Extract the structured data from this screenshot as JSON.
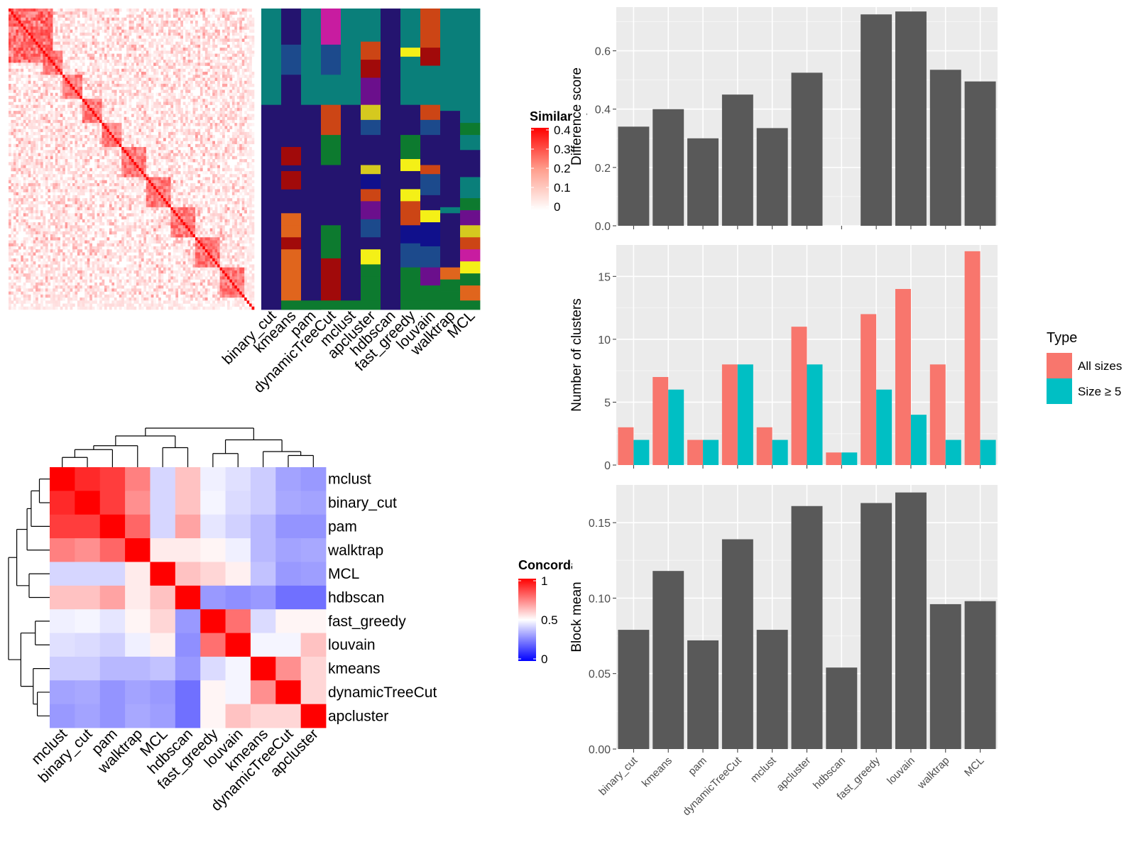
{
  "methods": [
    "binary_cut",
    "kmeans",
    "pam",
    "dynamicTreeCut",
    "mclust",
    "apcluster",
    "hdbscan",
    "fast_greedy",
    "louvain",
    "walktrap",
    "MCL"
  ],
  "similarity_legend": {
    "title": "Similarity",
    "ticks": [
      "0.4",
      "0.3",
      "0.2",
      "0.1",
      "0"
    ]
  },
  "concordance_legend": {
    "title": "Concordance",
    "ticks": [
      "1",
      "0.5",
      "0"
    ]
  },
  "concordance_order": [
    "mclust",
    "binary_cut",
    "pam",
    "walktrap",
    "MCL",
    "hdbscan",
    "fast_greedy",
    "louvain",
    "kmeans",
    "dynamicTreeCut",
    "apcluster"
  ],
  "colors": {
    "bar": "#595959",
    "panel_bg": "#ebebeb",
    "all_sizes": "#f8766d",
    "size_ge_5": "#00bfc4",
    "sim_high": "#ff0000",
    "conc_high": "#ff0000",
    "conc_mid": "#ffffff",
    "conc_low": "#0000ff"
  },
  "chart_data": [
    {
      "type": "heatmap",
      "panel": "similarity matrix with cluster assignments",
      "legend_title": "Similarity",
      "value_range": [
        0,
        0.4
      ],
      "ticks": [
        0,
        0.1,
        0.2,
        0.3,
        0.4
      ],
      "assignment_columns": [
        "binary_cut",
        "kmeans",
        "pam",
        "dynamicTreeCut",
        "mclust",
        "apcluster",
        "hdbscan",
        "fast_greedy",
        "louvain",
        "walktrap",
        "MCL"
      ]
    },
    {
      "type": "heatmap",
      "panel": "concordance between methods",
      "legend_title": "Concordance",
      "value_range": [
        0,
        1
      ],
      "ticks": [
        0,
        0.5,
        1
      ],
      "rows": [
        "mclust",
        "binary_cut",
        "pam",
        "walktrap",
        "MCL",
        "hdbscan",
        "fast_greedy",
        "louvain",
        "kmeans",
        "dynamicTreeCut",
        "apcluster"
      ],
      "columns": [
        "mclust",
        "binary_cut",
        "pam",
        "walktrap",
        "MCL",
        "hdbscan",
        "fast_greedy",
        "louvain",
        "kmeans",
        "dynamicTreeCut",
        "apcluster"
      ],
      "values": [
        [
          1.0,
          0.92,
          0.88,
          0.75,
          0.42,
          0.62,
          0.47,
          0.44,
          0.4,
          0.32,
          0.3
        ],
        [
          0.92,
          1.0,
          0.88,
          0.72,
          0.42,
          0.62,
          0.48,
          0.43,
          0.4,
          0.33,
          0.32
        ],
        [
          0.88,
          0.88,
          1.0,
          0.8,
          0.42,
          0.68,
          0.45,
          0.41,
          0.36,
          0.29,
          0.29
        ],
        [
          0.75,
          0.72,
          0.8,
          1.0,
          0.54,
          0.54,
          0.52,
          0.47,
          0.36,
          0.32,
          0.33
        ],
        [
          0.42,
          0.42,
          0.42,
          0.54,
          1.0,
          0.62,
          0.58,
          0.53,
          0.38,
          0.3,
          0.31
        ],
        [
          0.62,
          0.62,
          0.68,
          0.54,
          0.62,
          1.0,
          0.3,
          0.28,
          0.3,
          0.22,
          0.22
        ],
        [
          0.47,
          0.48,
          0.45,
          0.52,
          0.58,
          0.3,
          1.0,
          0.78,
          0.43,
          0.52,
          0.52
        ],
        [
          0.44,
          0.43,
          0.41,
          0.47,
          0.53,
          0.28,
          0.78,
          1.0,
          0.48,
          0.48,
          0.62
        ],
        [
          0.4,
          0.4,
          0.36,
          0.36,
          0.38,
          0.3,
          0.43,
          0.48,
          1.0,
          0.72,
          0.58
        ],
        [
          0.32,
          0.33,
          0.29,
          0.32,
          0.3,
          0.22,
          0.52,
          0.48,
          0.72,
          1.0,
          0.58
        ],
        [
          0.3,
          0.32,
          0.29,
          0.33,
          0.31,
          0.22,
          0.52,
          0.62,
          0.58,
          0.58,
          1.0
        ]
      ]
    },
    {
      "type": "bar",
      "categories": [
        "binary_cut",
        "kmeans",
        "pam",
        "dynamicTreeCut",
        "mclust",
        "apcluster",
        "hdbscan",
        "fast_greedy",
        "louvain",
        "walktrap",
        "MCL"
      ],
      "values": [
        0.34,
        0.4,
        0.3,
        0.45,
        0.335,
        0.525,
        null,
        0.725,
        0.735,
        0.535,
        0.495
      ],
      "ylabel": "Difference score",
      "ylim": [
        0,
        0.75
      ],
      "yticks": [
        "0.0",
        "0.2",
        "0.4",
        "0.6"
      ],
      "grid": true
    },
    {
      "type": "bar",
      "categories": [
        "binary_cut",
        "kmeans",
        "pam",
        "dynamicTreeCut",
        "mclust",
        "apcluster",
        "hdbscan",
        "fast_greedy",
        "louvain",
        "walktrap",
        "MCL"
      ],
      "series": [
        {
          "name": "All sizes",
          "values": [
            3,
            7,
            2,
            8,
            3,
            11,
            1,
            12,
            14,
            8,
            17
          ]
        },
        {
          "name": "Size ≥ 5",
          "values": [
            2,
            6,
            2,
            8,
            2,
            8,
            1,
            6,
            4,
            2,
            2
          ]
        }
      ],
      "ylabel": "Number of clusters",
      "ylim": [
        0,
        17.5
      ],
      "yticks": [
        "0",
        "5",
        "10",
        "15"
      ],
      "legend_title": "Type",
      "legend_position": "right",
      "grid": true
    },
    {
      "type": "bar",
      "categories": [
        "binary_cut",
        "kmeans",
        "pam",
        "dynamicTreeCut",
        "mclust",
        "apcluster",
        "hdbscan",
        "fast_greedy",
        "louvain",
        "walktrap",
        "MCL"
      ],
      "values": [
        0.079,
        0.118,
        0.072,
        0.139,
        0.079,
        0.161,
        0.054,
        0.163,
        0.17,
        0.096,
        0.098
      ],
      "ylabel": "Block mean",
      "ylim": [
        0,
        0.175
      ],
      "yticks": [
        "0.00",
        "0.05",
        "0.10",
        "0.15"
      ],
      "grid": true
    }
  ]
}
